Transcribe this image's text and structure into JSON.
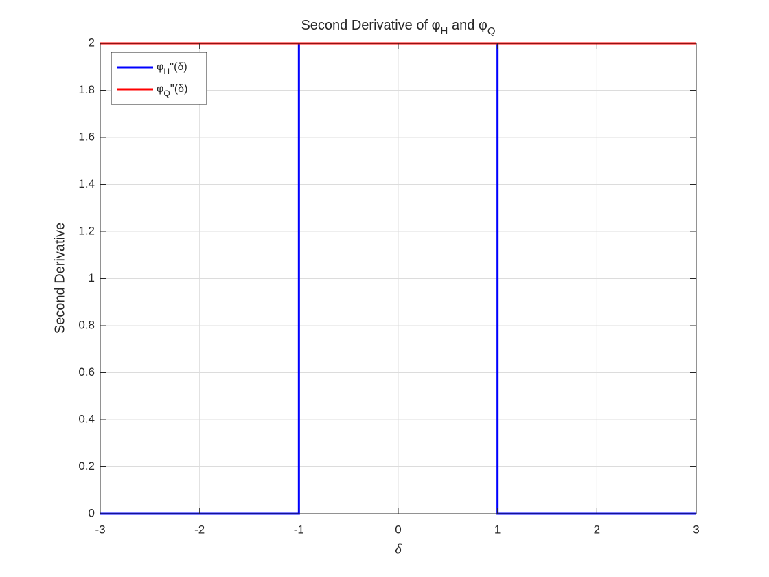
{
  "chart_data": {
    "type": "line",
    "title": [
      {
        "text": "Second Derivative of "
      },
      {
        "text": "φ"
      },
      {
        "text": "H",
        "sub": true
      },
      {
        "text": " and "
      },
      {
        "text": "φ"
      },
      {
        "text": "Q",
        "sub": true
      }
    ],
    "x_label": "δ",
    "y_label": "Second Derivative",
    "series": [
      {
        "name": [
          {
            "text": "φ"
          },
          {
            "text": "H",
            "sub": true
          },
          {
            "text": "''(δ)"
          }
        ],
        "color": "#0000ff",
        "x": [
          -3,
          -1,
          -1,
          1,
          1,
          3
        ],
        "values": [
          0,
          0,
          2,
          2,
          0,
          0
        ]
      },
      {
        "name": [
          {
            "text": "φ"
          },
          {
            "text": "Q",
            "sub": true
          },
          {
            "text": "''(δ)"
          }
        ],
        "color": "#ff0000",
        "x": [
          -3,
          3
        ],
        "values": [
          2,
          2
        ]
      }
    ],
    "xlim": [
      -3,
      3
    ],
    "ylim": [
      0,
      2
    ],
    "xticks": [
      -3,
      -2,
      -1,
      0,
      1,
      2,
      3
    ],
    "yticks": [
      0,
      0.2,
      0.4,
      0.6,
      0.8,
      1,
      1.2,
      1.4,
      1.6,
      1.8,
      2
    ],
    "grid": true,
    "legend_position": "northwest"
  }
}
